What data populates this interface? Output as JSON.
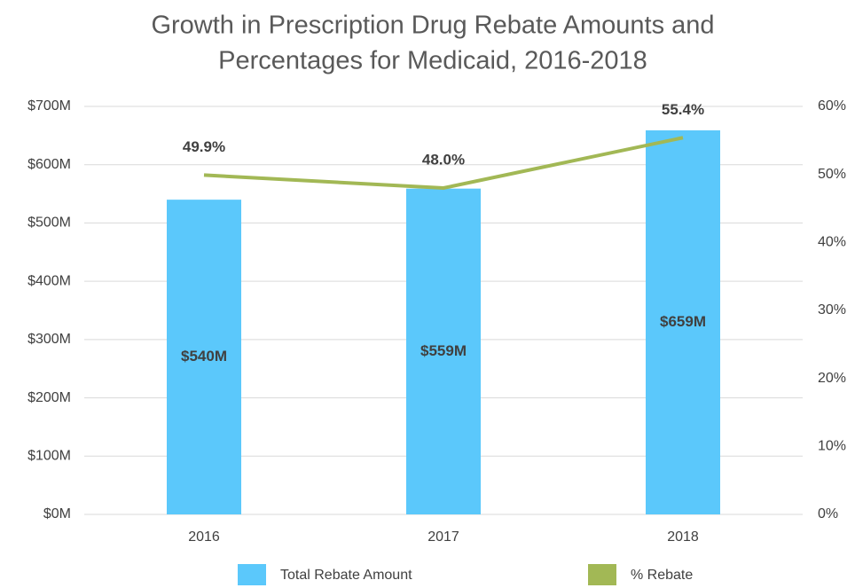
{
  "chart_data": {
    "type": "bar",
    "title": [
      "Growth in Prescription Drug Rebate Amounts and",
      "Percentages for Medicaid, 2016-2018"
    ],
    "categories": [
      "2016",
      "2017",
      "2018"
    ],
    "series": [
      {
        "name": "Total Rebate Amount",
        "type": "bar",
        "color": "#5bc8fb",
        "values": [
          540,
          559,
          659
        ],
        "value_labels": [
          "$540M",
          "$559M",
          "$659M"
        ]
      },
      {
        "name": "% Rebate",
        "type": "line",
        "axis": "y2",
        "color": "#a2b855",
        "values": [
          49.9,
          48.0,
          55.4
        ],
        "value_labels": [
          "49.9%",
          "48.0%",
          "55.4%"
        ]
      }
    ],
    "ylim": [
      0,
      700
    ],
    "yticks": [
      {
        "value": 0,
        "label": "$0M"
      },
      {
        "value": 100,
        "label": "$100M"
      },
      {
        "value": 200,
        "label": "$200M"
      },
      {
        "value": 300,
        "label": "$300M"
      },
      {
        "value": 400,
        "label": "$400M"
      },
      {
        "value": 500,
        "label": "$500M"
      },
      {
        "value": 600,
        "label": "$600M"
      },
      {
        "value": 700,
        "label": "$700M"
      }
    ],
    "y2lim": [
      0,
      60
    ],
    "y2ticks": [
      {
        "value": 0,
        "label": "0%"
      },
      {
        "value": 10,
        "label": "10%"
      },
      {
        "value": 20,
        "label": "20%"
      },
      {
        "value": 30,
        "label": "30%"
      },
      {
        "value": 40,
        "label": "40%"
      },
      {
        "value": 50,
        "label": "50%"
      },
      {
        "value": 60,
        "label": "60%"
      }
    ],
    "grid": true,
    "legend": "bottom"
  }
}
